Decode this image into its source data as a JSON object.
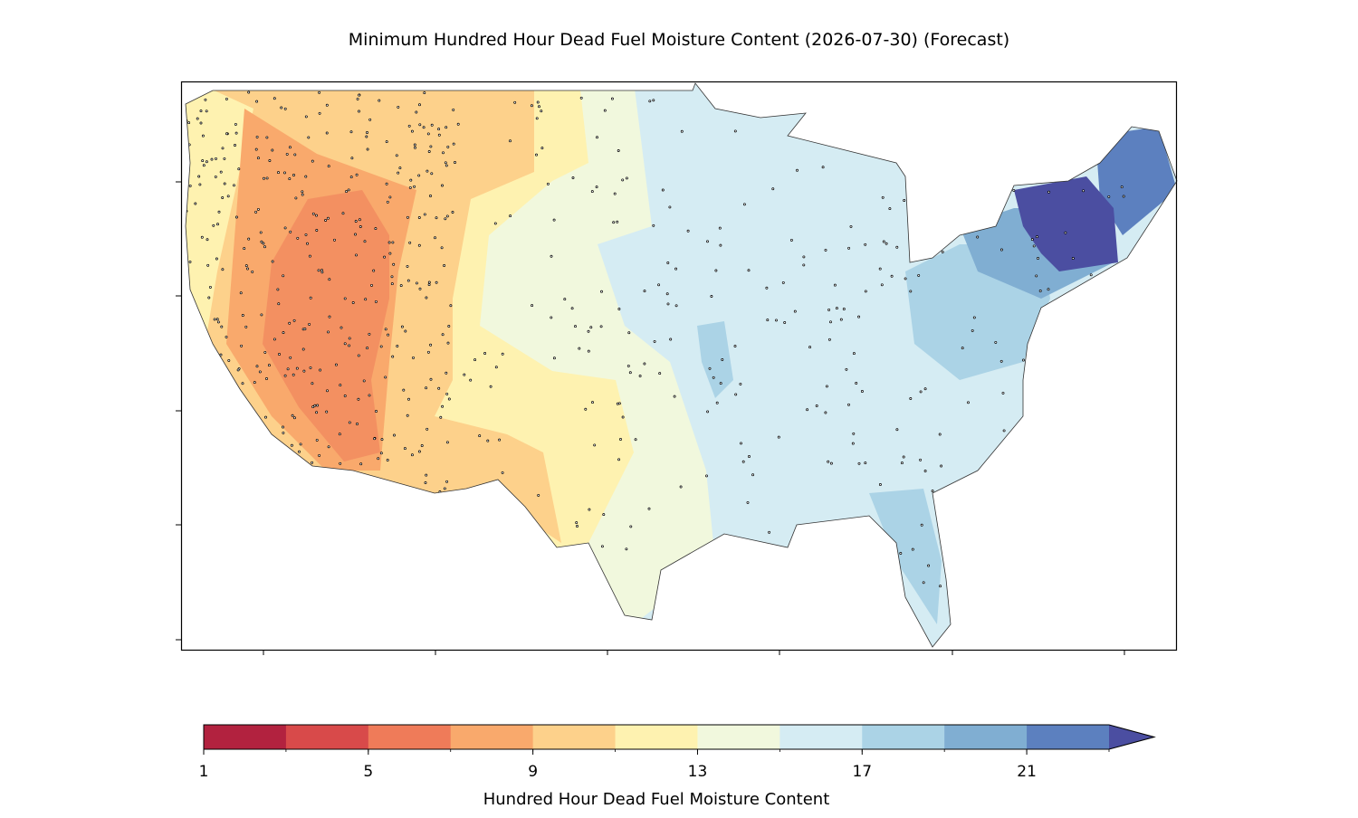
{
  "chart_data": {
    "type": "map",
    "title": "Minimum Hundred Hour Dead Fuel Moisture Content (2026-07-30) (Forecast)",
    "colorbar": {
      "label": "Hundred Hour Dead Fuel Moisture Content",
      "bounds": [
        1,
        3,
        5,
        7,
        9,
        11,
        13,
        15,
        17,
        19,
        21,
        23
      ],
      "ticks": [
        1,
        5,
        9,
        13,
        17,
        21
      ],
      "colors": [
        "#b2223f",
        "#d84a4a",
        "#ef7b59",
        "#f9a96c",
        "#fdd18b",
        "#fef2b0",
        "#f1f8dd",
        "#d5ecf3",
        "#abd3e6",
        "#80aed2",
        "#5c80bf"
      ],
      "extend": "max",
      "extend_color": "#4b4ea1"
    }
  }
}
